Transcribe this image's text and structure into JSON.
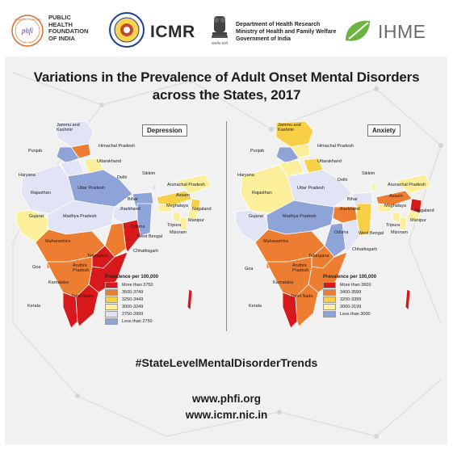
{
  "header": {
    "phfi_seal_text": "ACHIEVING TO ACTION",
    "phfi_mark": "phfi",
    "phfi_name_line1": "PUBLIC",
    "phfi_name_line2": "HEALTH",
    "phfi_name_line3": "FOUNDATION",
    "phfi_name_line4": "OF INDIA",
    "icmr_name": "ICMR",
    "dhr_line1": "Department of Health Research",
    "dhr_line2": "Ministry of Health and Family Welfare",
    "dhr_line3": "Government of India",
    "emblem_motto": "सत्यमेव जयते",
    "ihme_name": "IHME"
  },
  "title": {
    "line1": "Variations in the Prevalence of Adult Onset Mental Disorders",
    "line2": "across the States, 2017"
  },
  "depression_map": {
    "heading": "Depression",
    "labels": {
      "jk": "Jammu and\nKashmir",
      "hp": "Himachal Pradesh",
      "punjab": "Punjab",
      "uttarakhand": "Uttarakhand",
      "haryana": "Haryana",
      "delhi": "Delhi",
      "sikkim": "Sikkim",
      "arunachal": "Arunachal Pradesh",
      "rajasthan": "Rajasthan",
      "up": "Uttar Pradesh",
      "assam": "Assam",
      "bihar": "Bihar",
      "meghalaya": "Meghalaya",
      "nagaland": "Nagaland",
      "jharkhand": "Jharkhand",
      "manipur": "Manipur",
      "gujarat": "Gujarat",
      "mp": "Madhya Pradesh",
      "tripura": "Tripura",
      "mizoram": "Mizoram",
      "wb": "West Bengal",
      "odisha": "Odisha",
      "maharashtra": "Maharashtra",
      "chhattisgarh": "Chhattisgarh",
      "telangana": "Telangana",
      "goa": "Goa",
      "ap": "Andhra\nPradesh",
      "karnataka": "Karnataka",
      "tn": "Tamil Nadu",
      "kerala": "Kerala"
    },
    "legend_title": "Prevalence per 100,000",
    "legend": [
      {
        "label": "More than 3750",
        "color": "#d7191c"
      },
      {
        "label": "3500-3749",
        "color": "#ed7d31"
      },
      {
        "label": "3250-3449",
        "color": "#f7d046"
      },
      {
        "label": "3000-3249",
        "color": "#fbef9c"
      },
      {
        "label": "2750-2999",
        "color": "#e0e4f5"
      },
      {
        "label": "Less than 2750",
        "color": "#8ea3d8"
      }
    ]
  },
  "anxiety_map": {
    "heading": "Anxiety",
    "labels": {
      "jk": "Jammu and\nKashmir",
      "hp": "Himachal Pradesh",
      "punjab": "Punjab",
      "uttarakhand": "Uttarakhand",
      "haryana": "Haryana",
      "delhi": "Delhi",
      "sikkim": "Sikkim",
      "arunachal": "Arunachal Pradesh",
      "rajasthan": "Rajasthan",
      "up": "Uttar Pradesh",
      "assam": "Assam",
      "bihar": "Bihar",
      "meghalaya": "Meghalaya",
      "nagaland": "Nagaland",
      "jharkhand": "Jharkhand",
      "manipur": "Manipur",
      "gujarat": "Gujarat",
      "mp": "Madhya Pradesh",
      "tripura": "Tripura",
      "mizoram": "Mizoram",
      "wb": "West Bengal",
      "odisha": "Odisha",
      "maharashtra": "Maharashtra",
      "chhattisgarh": "Chhattisgarh",
      "telangana": "Telangana",
      "goa": "Goa",
      "ap": "Andhra\nPradesh",
      "karnataka": "Karnataka",
      "tn": "Tamil Nadu",
      "kerala": "Kerala"
    },
    "legend_title": "Prevalence per 100,000",
    "legend": [
      {
        "label": "More than 3600",
        "color": "#d7191c"
      },
      {
        "label": "3400-3599",
        "color": "#ed7d31"
      },
      {
        "label": "3200-3399",
        "color": "#f7d046"
      },
      {
        "label": "3000-3199",
        "color": "#fbef9c"
      },
      {
        "label": "Less than 3000",
        "color": "#8ea3d8"
      }
    ]
  },
  "footer": {
    "hashtag": "#StateLevelMentalDisorderTrends",
    "url1": "www.phfi.org",
    "url2": "www.icmr.nic.in"
  },
  "colors": {
    "red": "#d7191c",
    "orange": "#ed7d31",
    "yellow": "#f7d046",
    "light_yellow": "#fbef9c",
    "pale_blue": "#e0e4f5",
    "blue": "#8ea3d8",
    "ihme_green": "#6cb33f"
  }
}
